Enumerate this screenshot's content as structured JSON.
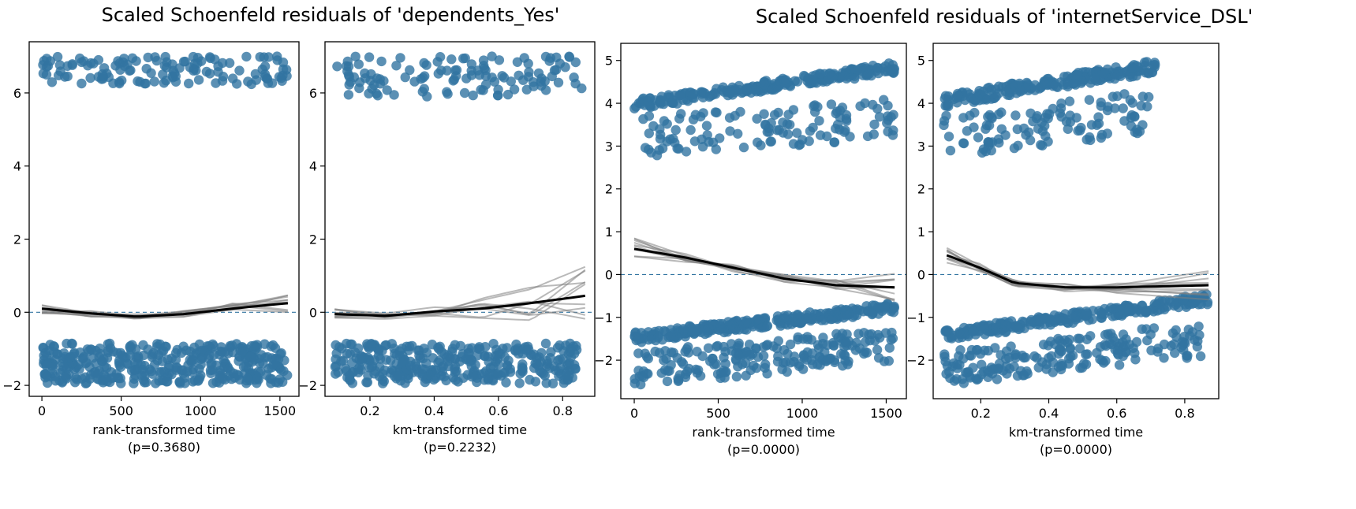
{
  "figure_titles": [
    "Scaled Schoenfeld residuals of 'dependents_Yes'",
    "Scaled Schoenfeld residuals of 'internetService_DSL'"
  ],
  "colors": {
    "points": "#3274a1",
    "smooth_main": "#000000",
    "smooth_bootstrap": "#808080",
    "zero_line": "#3274a1"
  },
  "chart_data": [
    {
      "type": "scatter",
      "variable": "dependents_Yes",
      "xlabel": "rank-transformed time",
      "pvalue": "(p=0.3680)",
      "xlim": [
        -80,
        1620
      ],
      "ylim": [
        -2.3,
        7.4
      ],
      "xticks": [
        0,
        500,
        1000,
        1500
      ],
      "xticklabels": [
        "0",
        "500",
        "1000",
        "1500"
      ],
      "yticks": [
        -2,
        0,
        2,
        4,
        6
      ],
      "yticklabels": [
        "−2",
        "0",
        "2",
        "4",
        "6"
      ],
      "zero_line": 0,
      "clusters": [
        {
          "x_start": 0,
          "x_end": 1550,
          "y_top": 7.0,
          "y_bottom": 6.2,
          "trend_slope": 0.0,
          "count": 130
        },
        {
          "x_start": 0,
          "x_end": 1550,
          "y_top": -0.85,
          "y_bottom": -1.95,
          "trend_slope": 0.0,
          "count": 380
        }
      ],
      "lowess": {
        "x": [
          0,
          300,
          600,
          900,
          1200,
          1550
        ],
        "y": [
          0.1,
          -0.03,
          -0.12,
          -0.05,
          0.1,
          0.25
        ]
      },
      "bootstrap_count": 10,
      "bootstrap_spread": [
        0.18,
        0.1,
        0.08,
        0.1,
        0.15,
        0.25
      ]
    },
    {
      "type": "scatter",
      "variable": "dependents_Yes",
      "xlabel": "km-transformed time",
      "pvalue": "(p=0.2232)",
      "xlim": [
        0.06,
        0.9
      ],
      "ylim": [
        -2.3,
        7.4
      ],
      "xticks": [
        0.2,
        0.4,
        0.6,
        0.8
      ],
      "xticklabels": [
        "0.2",
        "0.4",
        "0.6",
        "0.8"
      ],
      "yticks": [
        -2,
        0,
        2,
        4,
        6
      ],
      "yticklabels": [
        "−2",
        "0",
        "2",
        "4",
        "6"
      ],
      "zero_line": 0,
      "clusters": [
        {
          "x_start": 0.09,
          "x_end": 0.87,
          "y_top": 7.0,
          "y_bottom": 5.9,
          "trend_slope": 0.0,
          "count": 120
        },
        {
          "x_start": 0.09,
          "x_end": 0.85,
          "y_top": -0.85,
          "y_bottom": -1.95,
          "trend_slope": 0.0,
          "count": 330
        }
      ],
      "lowess": {
        "x": [
          0.09,
          0.25,
          0.4,
          0.55,
          0.7,
          0.87
        ],
        "y": [
          -0.05,
          -0.1,
          0.02,
          0.1,
          0.25,
          0.45
        ]
      },
      "bootstrap_count": 10,
      "bootstrap_spread": [
        0.15,
        0.1,
        0.15,
        0.3,
        0.5,
        0.8
      ]
    },
    {
      "type": "scatter",
      "variable": "internetService_DSL",
      "xlabel": "rank-transformed time",
      "pvalue": "(p=0.0000)",
      "xlim": [
        -80,
        1620
      ],
      "ylim": [
        -2.9,
        5.4
      ],
      "xticks": [
        0,
        500,
        1000,
        1500
      ],
      "xticklabels": [
        "0",
        "500",
        "1000",
        "1500"
      ],
      "yticks": [
        -2,
        -1,
        0,
        1,
        2,
        3,
        4,
        5
      ],
      "yticklabels": [
        "−2",
        "−1",
        "0",
        "1",
        "2",
        "3",
        "4",
        "5"
      ],
      "zero_line": 0,
      "clusters": [
        {
          "x_start": 0,
          "x_end": 1550,
          "y_top": 4.1,
          "y_bottom": 3.85,
          "trend_slope": 0.00055,
          "count": 220
        },
        {
          "x_start": 0,
          "x_end": 1550,
          "y_top": 3.7,
          "y_bottom": 2.7,
          "trend_slope": 0.0003,
          "count": 120
        },
        {
          "x_start": 0,
          "x_end": 1550,
          "y_top": -1.35,
          "y_bottom": -1.6,
          "trend_slope": 0.00045,
          "count": 260
        },
        {
          "x_start": 0,
          "x_end": 1550,
          "y_top": -1.8,
          "y_bottom": -2.6,
          "trend_slope": 0.00035,
          "count": 200
        }
      ],
      "lowess": {
        "x": [
          0,
          300,
          600,
          900,
          1200,
          1550
        ],
        "y": [
          0.6,
          0.4,
          0.15,
          -0.1,
          -0.25,
          -0.3
        ]
      },
      "bootstrap_count": 10,
      "bootstrap_spread": [
        0.25,
        0.12,
        0.1,
        0.1,
        0.15,
        0.35
      ]
    },
    {
      "type": "scatter",
      "variable": "internetService_DSL",
      "xlabel": "km-transformed time",
      "pvalue": "(p=0.0000)",
      "xlim": [
        0.06,
        0.9
      ],
      "ylim": [
        -2.9,
        5.4
      ],
      "xticks": [
        0.2,
        0.4,
        0.6,
        0.8
      ],
      "xticklabels": [
        "0.2",
        "0.4",
        "0.6",
        "0.8"
      ],
      "yticks": [
        -2,
        -1,
        0,
        1,
        2,
        3,
        4,
        5
      ],
      "yticklabels": [
        "−2",
        "−1",
        "0",
        "1",
        "2",
        "3",
        "4",
        "5"
      ],
      "zero_line": 0,
      "clusters": [
        {
          "x_start": 0.09,
          "x_end": 0.72,
          "y_top": 4.2,
          "y_bottom": 3.9,
          "trend_slope": 1.3,
          "count": 200
        },
        {
          "x_start": 0.09,
          "x_end": 0.7,
          "y_top": 3.7,
          "y_bottom": 2.7,
          "trend_slope": 1.0,
          "count": 110
        },
        {
          "x_start": 0.09,
          "x_end": 0.87,
          "y_top": -1.3,
          "y_bottom": -1.55,
          "trend_slope": 1.1,
          "count": 240
        },
        {
          "x_start": 0.09,
          "x_end": 0.85,
          "y_top": -1.8,
          "y_bottom": -2.6,
          "trend_slope": 0.9,
          "count": 190
        }
      ],
      "lowess": {
        "x": [
          0.1,
          0.2,
          0.3,
          0.45,
          0.6,
          0.87
        ],
        "y": [
          0.45,
          0.15,
          -0.2,
          -0.3,
          -0.3,
          -0.25
        ]
      },
      "bootstrap_count": 10,
      "bootstrap_spread": [
        0.2,
        0.1,
        0.08,
        0.1,
        0.15,
        0.35
      ]
    }
  ]
}
